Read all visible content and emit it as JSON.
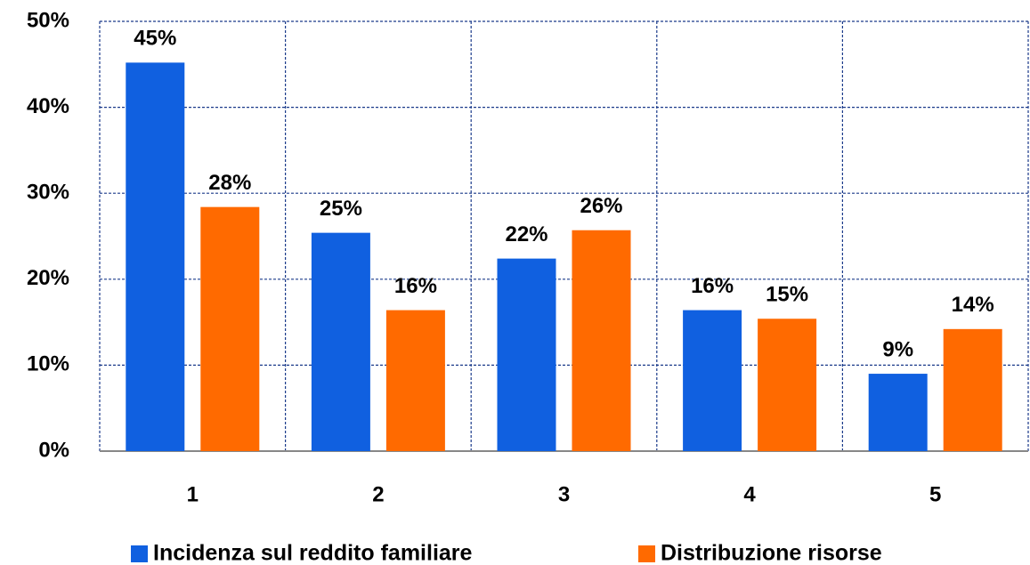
{
  "chart_data": {
    "type": "bar",
    "categories": [
      "1",
      "2",
      "3",
      "4",
      "5"
    ],
    "series": [
      {
        "name": "Incidenza sul reddito familiare",
        "color": "#1060e0",
        "values": [
          45.2,
          25.4,
          22.4,
          16.4,
          9.0
        ],
        "value_labels": [
          "45%",
          "25%",
          "22%",
          "16%",
          "9%"
        ]
      },
      {
        "name": "Distribuzione risorse",
        "color": "#ff6a00",
        "values": [
          28.4,
          16.4,
          25.7,
          15.4,
          14.2
        ],
        "value_labels": [
          "28%",
          "16%",
          "26%",
          "15%",
          "14%"
        ]
      }
    ],
    "ylim": [
      0,
      50
    ],
    "yticks": [
      {
        "value": 0,
        "label": "0%"
      },
      {
        "value": 10,
        "label": "10%"
      },
      {
        "value": 20,
        "label": "20%"
      },
      {
        "value": 30,
        "label": "30%"
      },
      {
        "value": 40,
        "label": "40%"
      },
      {
        "value": 50,
        "label": "50%"
      }
    ],
    "grid": true,
    "legend": "bottom"
  }
}
